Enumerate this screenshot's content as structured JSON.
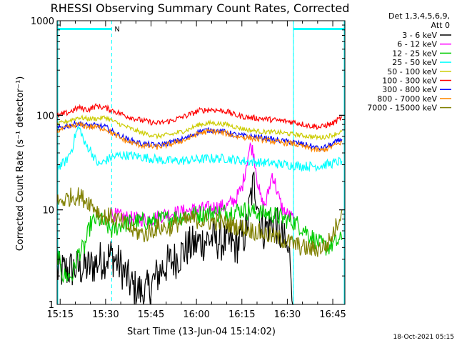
{
  "chart_data": {
    "type": "line",
    "title": "RHESSI Observing Summary Count Rates, Corrected",
    "xlabel": "Start Time (13-Jun-04 15:14:02)",
    "ylabel": "Corrected Count Rate (s⁻¹ detector⁻¹)",
    "y_scale": "log",
    "ylim": [
      1,
      1000
    ],
    "xlim_minutes": [
      -1,
      94
    ],
    "x_ticks": [
      {
        "label": "15:15",
        "minute": 0
      },
      {
        "label": "15:30",
        "minute": 15
      },
      {
        "label": "15:45",
        "minute": 30
      },
      {
        "label": "16:00",
        "minute": 45
      },
      {
        "label": "16:15",
        "minute": 60
      },
      {
        "label": "16:30",
        "minute": 75
      },
      {
        "label": "16:45",
        "minute": 90
      }
    ],
    "y_ticks": [
      {
        "label": "1",
        "value": 1
      },
      {
        "label": "10",
        "value": 10
      },
      {
        "label": "100",
        "value": 100
      },
      {
        "label": "1000",
        "value": 1000
      }
    ],
    "legend": {
      "placement": "top-right",
      "header": [
        "Det 1,3,4,5,6,9,",
        "Att 0"
      ]
    },
    "night_intervals": [
      [
        -1,
        17
      ],
      [
        77,
        94
      ]
    ],
    "saa_bar": [
      [
        -1,
        17
      ],
      [
        77,
        94
      ]
    ],
    "saa_flag": "N",
    "footer_date": "18-Oct-2021 05:15",
    "series": [
      {
        "name": "3 - 6 keV",
        "color": "#000000",
        "points": [
          [
            -1,
            2.2
          ],
          [
            5,
            2.4
          ],
          [
            10,
            2.5
          ],
          [
            14,
            3.0
          ],
          [
            17,
            3.3
          ],
          [
            20,
            2.5
          ],
          [
            24,
            1.5
          ],
          [
            28,
            1.3
          ],
          [
            30,
            1.6
          ],
          [
            34,
            2.5
          ],
          [
            38,
            3.0
          ],
          [
            42,
            4.0
          ],
          [
            46,
            4.5
          ],
          [
            50,
            5.0
          ],
          [
            54,
            4.6
          ],
          [
            58,
            4.2
          ],
          [
            61,
            5.5
          ],
          [
            62,
            8.0
          ],
          [
            63,
            14.0
          ],
          [
            64,
            19.0
          ],
          [
            65,
            14.0
          ],
          [
            66,
            8.0
          ],
          [
            67,
            6.0
          ],
          [
            69,
            7.0
          ],
          [
            71,
            8.0
          ],
          [
            72,
            6.0
          ],
          [
            74,
            4.5
          ],
          [
            76,
            3.0
          ],
          [
            77,
            1.0
          ]
        ]
      },
      {
        "name": "6 - 12 keV",
        "color": "#ff00ff",
        "points": [
          [
            17,
            9.0
          ],
          [
            20,
            8.5
          ],
          [
            25,
            8.0
          ],
          [
            30,
            8.0
          ],
          [
            35,
            9.0
          ],
          [
            40,
            9.5
          ],
          [
            45,
            10.0
          ],
          [
            50,
            10.5
          ],
          [
            55,
            11.0
          ],
          [
            58,
            13.0
          ],
          [
            60,
            17.0
          ],
          [
            61,
            25.0
          ],
          [
            62,
            38.0
          ],
          [
            63,
            48.0
          ],
          [
            64,
            38.0
          ],
          [
            65,
            22.0
          ],
          [
            66,
            14.0
          ],
          [
            67,
            11.0
          ],
          [
            68,
            12.0
          ],
          [
            69,
            17.0
          ],
          [
            70,
            24.0
          ],
          [
            71,
            19.0
          ],
          [
            72,
            14.0
          ],
          [
            73,
            11.0
          ],
          [
            74,
            9.5
          ],
          [
            76,
            8.5
          ],
          [
            77,
            8.0
          ]
        ]
      },
      {
        "name": "12 - 25 keV",
        "color": "#00cc00",
        "points": [
          [
            -1,
            3.5
          ],
          [
            1,
            2.0
          ],
          [
            4,
            2.0
          ],
          [
            6,
            3.5
          ],
          [
            8,
            4.0
          ],
          [
            10,
            7.0
          ],
          [
            12,
            8.0
          ],
          [
            14,
            7.5
          ],
          [
            17,
            6.0
          ],
          [
            20,
            7.0
          ],
          [
            25,
            7.5
          ],
          [
            30,
            7.5
          ],
          [
            35,
            8.0
          ],
          [
            40,
            8.5
          ],
          [
            45,
            9.0
          ],
          [
            50,
            9.2
          ],
          [
            55,
            9.5
          ],
          [
            60,
            10.0
          ],
          [
            64,
            9.5
          ],
          [
            70,
            9.0
          ],
          [
            74,
            8.0
          ],
          [
            77,
            7.5
          ],
          [
            80,
            6.5
          ],
          [
            85,
            4.5
          ],
          [
            88,
            4.0
          ],
          [
            91,
            4.5
          ],
          [
            93,
            4.8
          ]
        ]
      },
      {
        "name": "25 - 50 keV",
        "color": "#00ffff",
        "points": [
          [
            -1,
            28
          ],
          [
            2,
            33
          ],
          [
            4,
            45
          ],
          [
            5,
            62
          ],
          [
            6,
            74
          ],
          [
            7,
            66
          ],
          [
            8,
            50
          ],
          [
            10,
            43
          ],
          [
            12,
            32
          ],
          [
            13,
            30
          ],
          [
            15,
            33
          ],
          [
            17,
            36
          ],
          [
            20,
            38
          ],
          [
            25,
            37
          ],
          [
            30,
            35
          ],
          [
            35,
            33
          ],
          [
            40,
            33
          ],
          [
            45,
            34
          ],
          [
            50,
            35
          ],
          [
            55,
            35
          ],
          [
            60,
            33
          ],
          [
            65,
            32
          ],
          [
            70,
            31
          ],
          [
            75,
            30
          ],
          [
            80,
            29
          ],
          [
            85,
            29
          ],
          [
            90,
            31
          ],
          [
            93,
            33
          ]
        ]
      },
      {
        "name": "50 - 100 keV",
        "color": "#cccc00",
        "points": [
          [
            -1,
            80
          ],
          [
            3,
            88
          ],
          [
            6,
            95
          ],
          [
            9,
            92
          ],
          [
            12,
            92
          ],
          [
            15,
            95
          ],
          [
            18,
            85
          ],
          [
            22,
            75
          ],
          [
            27,
            65
          ],
          [
            32,
            60
          ],
          [
            37,
            63
          ],
          [
            42,
            70
          ],
          [
            46,
            80
          ],
          [
            50,
            83
          ],
          [
            55,
            80
          ],
          [
            58,
            75
          ],
          [
            62,
            70
          ],
          [
            67,
            67
          ],
          [
            72,
            66
          ],
          [
            77,
            63
          ],
          [
            82,
            60
          ],
          [
            86,
            58
          ],
          [
            90,
            62
          ],
          [
            93,
            67
          ]
        ]
      },
      {
        "name": "100 - 300 keV",
        "color": "#ff0000",
        "points": [
          [
            -1,
            98
          ],
          [
            3,
            108
          ],
          [
            6,
            120
          ],
          [
            9,
            115
          ],
          [
            12,
            125
          ],
          [
            15,
            120
          ],
          [
            18,
            110
          ],
          [
            22,
            98
          ],
          [
            27,
            88
          ],
          [
            32,
            82
          ],
          [
            37,
            88
          ],
          [
            42,
            100
          ],
          [
            46,
            112
          ],
          [
            50,
            115
          ],
          [
            55,
            110
          ],
          [
            58,
            100
          ],
          [
            62,
            95
          ],
          [
            67,
            92
          ],
          [
            72,
            88
          ],
          [
            77,
            85
          ],
          [
            82,
            78
          ],
          [
            86,
            75
          ],
          [
            90,
            82
          ],
          [
            93,
            95
          ]
        ]
      },
      {
        "name": "300 - 800 keV",
        "color": "#0000ff",
        "points": [
          [
            -1,
            72
          ],
          [
            3,
            78
          ],
          [
            6,
            82
          ],
          [
            9,
            78
          ],
          [
            12,
            78
          ],
          [
            15,
            75
          ],
          [
            18,
            65
          ],
          [
            22,
            56
          ],
          [
            27,
            50
          ],
          [
            32,
            48
          ],
          [
            37,
            52
          ],
          [
            42,
            58
          ],
          [
            46,
            68
          ],
          [
            50,
            70
          ],
          [
            55,
            66
          ],
          [
            58,
            62
          ],
          [
            62,
            60
          ],
          [
            67,
            58
          ],
          [
            72,
            54
          ],
          [
            77,
            52
          ],
          [
            82,
            48
          ],
          [
            86,
            44
          ],
          [
            90,
            50
          ],
          [
            93,
            56
          ]
        ]
      },
      {
        "name": "800 - 7000 keV",
        "color": "#ff8800",
        "points": [
          [
            -1,
            68
          ],
          [
            3,
            75
          ],
          [
            6,
            80
          ],
          [
            9,
            76
          ],
          [
            12,
            75
          ],
          [
            15,
            72
          ],
          [
            18,
            62
          ],
          [
            22,
            53
          ],
          [
            27,
            48
          ],
          [
            32,
            46
          ],
          [
            37,
            50
          ],
          [
            42,
            56
          ],
          [
            46,
            65
          ],
          [
            50,
            68
          ],
          [
            55,
            64
          ],
          [
            58,
            60
          ],
          [
            62,
            58
          ],
          [
            67,
            55
          ],
          [
            72,
            52
          ],
          [
            77,
            50
          ],
          [
            82,
            45
          ],
          [
            86,
            42
          ],
          [
            90,
            47
          ],
          [
            93,
            52
          ]
        ]
      },
      {
        "name": "7000 - 15000 keV",
        "color": "#808000",
        "points": [
          [
            -1,
            12
          ],
          [
            2,
            13
          ],
          [
            4,
            14
          ],
          [
            6,
            14
          ],
          [
            8,
            13
          ],
          [
            10,
            12
          ],
          [
            12,
            10
          ],
          [
            14,
            8.5
          ],
          [
            17,
            8.5
          ],
          [
            20,
            7.5
          ],
          [
            24,
            6.0
          ],
          [
            28,
            5.5
          ],
          [
            32,
            6.5
          ],
          [
            36,
            6.5
          ],
          [
            40,
            7.5
          ],
          [
            44,
            8.0
          ],
          [
            48,
            7.5
          ],
          [
            52,
            7.5
          ],
          [
            56,
            7.0
          ],
          [
            60,
            6.5
          ],
          [
            64,
            6.0
          ],
          [
            68,
            5.5
          ],
          [
            72,
            5.0
          ],
          [
            76,
            4.5
          ],
          [
            80,
            4.0
          ],
          [
            84,
            3.8
          ],
          [
            88,
            4.2
          ],
          [
            90,
            5.5
          ],
          [
            92,
            8.0
          ],
          [
            93,
            10.0
          ]
        ]
      }
    ]
  }
}
